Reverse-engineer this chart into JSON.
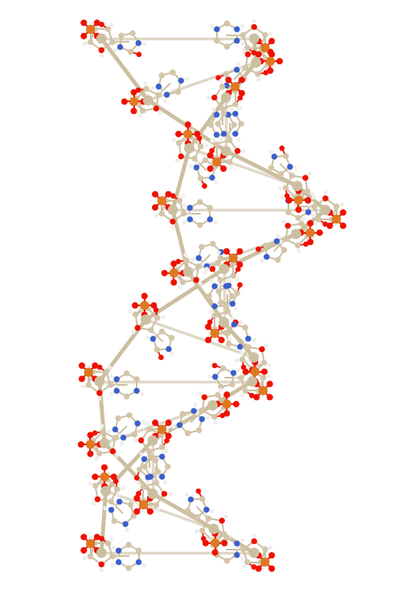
{
  "background_color": "#ffffff",
  "atom_colors": {
    "C": "#d4c5a9",
    "N": "#3a5fcd",
    "O": "#ee1100",
    "P": "#e07820",
    "H": "#f0eeea",
    "backbone": "#cbbfa0"
  },
  "bond_color": "#cbbfa0",
  "figsize": [
    4.99,
    7.38
  ],
  "dpi": 100
}
